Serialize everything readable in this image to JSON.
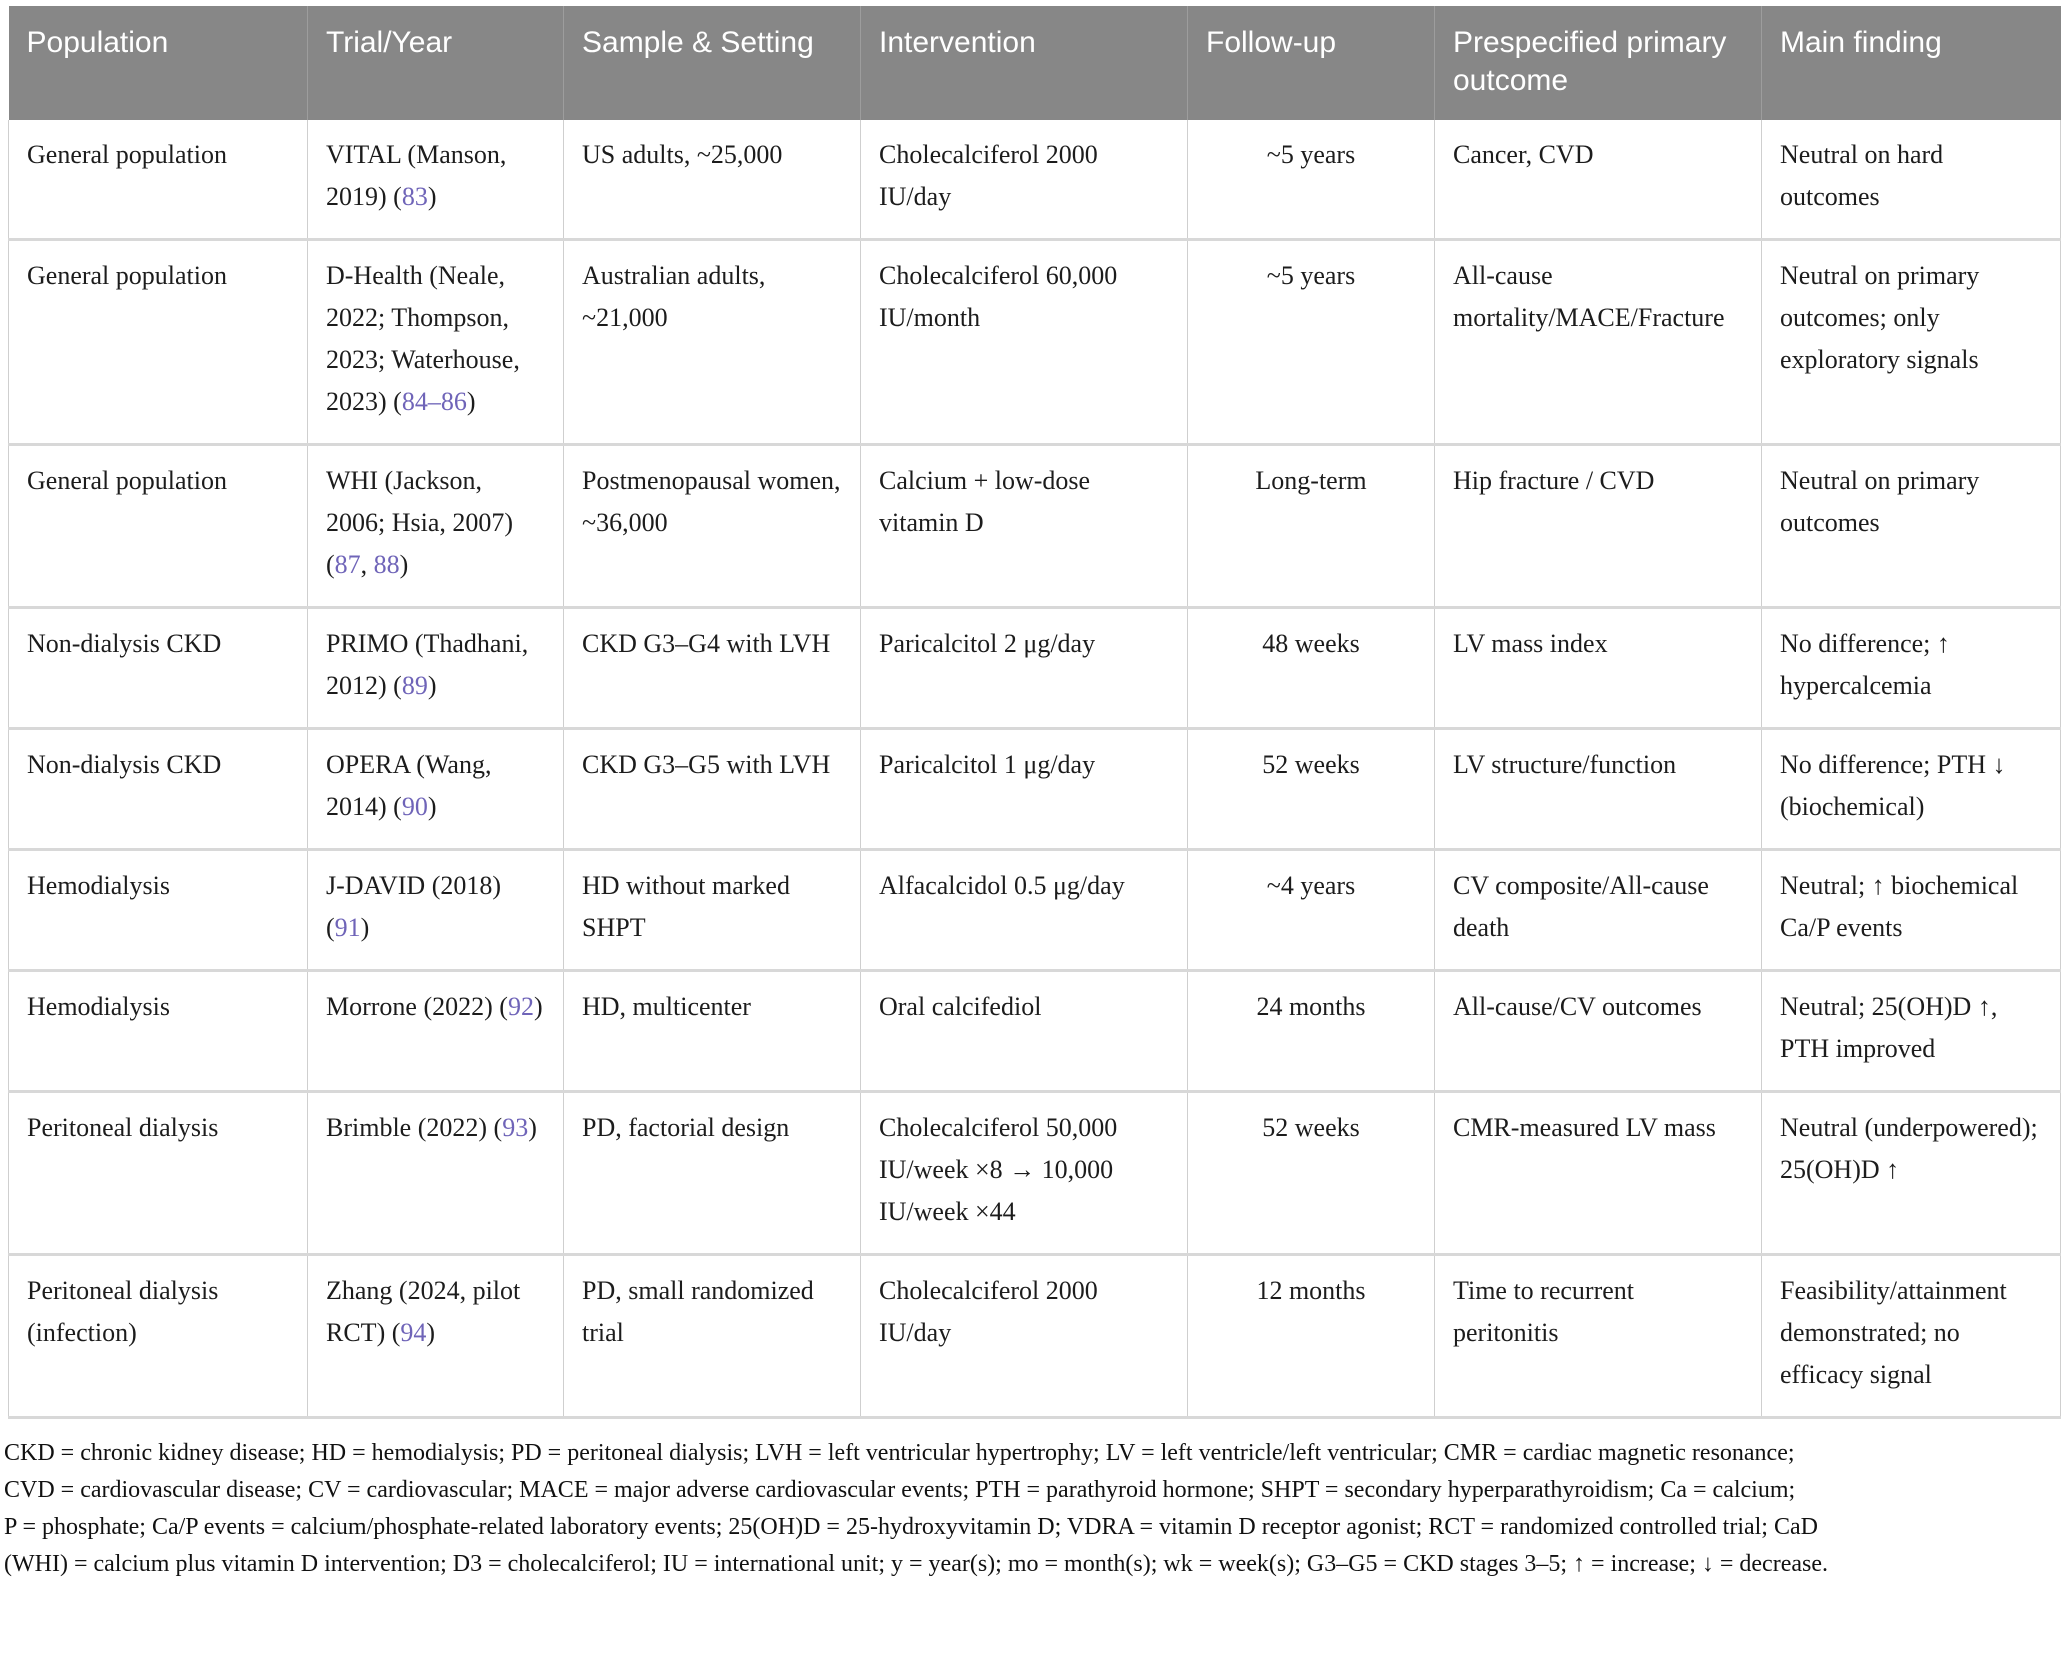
{
  "table": {
    "columns": [
      {
        "key": "population",
        "label": "Population"
      },
      {
        "key": "trial",
        "label": "Trial/Year"
      },
      {
        "key": "sample",
        "label": "Sample & Setting"
      },
      {
        "key": "intervention",
        "label": "Intervention"
      },
      {
        "key": "followup",
        "label": "Follow-up"
      },
      {
        "key": "outcome",
        "label": "Prespecified primary outcome"
      },
      {
        "key": "finding",
        "label": "Main finding"
      }
    ],
    "rows": [
      {
        "population": "General population",
        "trial_parts": [
          {
            "t": "VITAL (Manson, 2019) ("
          },
          {
            "t": "83",
            "link": true
          },
          {
            "t": ")"
          }
        ],
        "sample": "US adults, ~25,000",
        "intervention": "Cholecalciferol 2000 IU/day",
        "followup": "~5 years",
        "outcome": "Cancer, CVD",
        "finding": "Neutral on hard outcomes"
      },
      {
        "population": "General population",
        "trial_parts": [
          {
            "t": "D-Health (Neale, 2022; Thompson, 2023; Waterhouse, 2023) ("
          },
          {
            "t": "84–86",
            "link": true
          },
          {
            "t": ")"
          }
        ],
        "sample": "Australian adults, ~21,000",
        "intervention": "Cholecalciferol 60,000 IU/month",
        "followup": "~5 years",
        "outcome": "All-cause mortality/MACE/Fracture",
        "finding": "Neutral on primary outcomes; only exploratory signals"
      },
      {
        "population": "General population",
        "trial_parts": [
          {
            "t": "WHI (Jackson, 2006; Hsia, 2007) ("
          },
          {
            "t": "87",
            "link": true
          },
          {
            "t": ", "
          },
          {
            "t": "88",
            "link": true
          },
          {
            "t": ")"
          }
        ],
        "sample": "Postmenopausal women, ~36,000",
        "intervention": "Calcium + low-dose vitamin D",
        "followup": "Long-term",
        "outcome": "Hip fracture / CVD",
        "finding": "Neutral on primary outcomes"
      },
      {
        "population": "Non-dialysis CKD",
        "trial_parts": [
          {
            "t": "PRIMO (Thadhani, 2012) ("
          },
          {
            "t": "89",
            "link": true
          },
          {
            "t": ")"
          }
        ],
        "sample": "CKD G3–G4 with LVH",
        "intervention": "Paricalcitol 2 μg/day",
        "followup": "48 weeks",
        "outcome": "LV mass index",
        "finding": "No difference; ↑ hypercalcemia"
      },
      {
        "population": "Non-dialysis CKD",
        "trial_parts": [
          {
            "t": "OPERA (Wang, 2014) ("
          },
          {
            "t": "90",
            "link": true
          },
          {
            "t": ")"
          }
        ],
        "sample": "CKD G3–G5 with LVH",
        "intervention": "Paricalcitol 1 μg/day",
        "followup": "52 weeks",
        "outcome": "LV structure/function",
        "finding": "No difference; PTH ↓ (biochemical)"
      },
      {
        "population": "Hemodialysis",
        "trial_parts": [
          {
            "t": "J-DAVID (2018) ("
          },
          {
            "t": "91",
            "link": true
          },
          {
            "t": ")"
          }
        ],
        "sample": "HD without marked SHPT",
        "intervention": "Alfacalcidol 0.5 μg/day",
        "followup": "~4 years",
        "outcome": "CV composite/All-cause death",
        "finding": "Neutral; ↑ biochemical Ca/P events"
      },
      {
        "population": "Hemodialysis",
        "trial_parts": [
          {
            "t": "Morrone (2022) ("
          },
          {
            "t": "92",
            "link": true
          },
          {
            "t": ")"
          }
        ],
        "sample": "HD, multicenter",
        "intervention": "Oral calcifediol",
        "followup": "24 months",
        "outcome": "All-cause/CV outcomes",
        "finding": "Neutral; 25(OH)D ↑, PTH improved"
      },
      {
        "population": "Peritoneal dialysis",
        "trial_parts": [
          {
            "t": "Brimble (2022) ("
          },
          {
            "t": "93",
            "link": true
          },
          {
            "t": ")"
          }
        ],
        "sample": "PD, factorial design",
        "intervention": "Cholecalciferol 50,000 IU/week ×8 → 10,000 IU/week ×44",
        "followup": "52 weeks",
        "outcome": "CMR-measured LV mass",
        "finding": "Neutral (underpowered); 25(OH)D ↑"
      },
      {
        "population": "Peritoneal dialysis (infection)",
        "trial_parts": [
          {
            "t": "Zhang (2024, pilot RCT) ("
          },
          {
            "t": "94",
            "link": true
          },
          {
            "t": ")"
          }
        ],
        "sample": "PD, small randomized trial",
        "intervention": "Cholecalciferol 2000 IU/day",
        "followup": "12 months",
        "outcome": "Time to recurrent peritonitis",
        "finding": "Feasibility/attainment demonstrated; no efficacy signal"
      }
    ]
  },
  "footnote_lines": [
    "CKD = chronic kidney disease; HD = hemodialysis; PD = peritoneal dialysis; LVH = left ventricular hypertrophy; LV = left ventricle/left ventricular; CMR = cardiac magnetic resonance;",
    "CVD = cardiovascular disease; CV = cardiovascular; MACE = major adverse cardiovascular events; PTH = parathyroid hormone; SHPT = secondary hyperparathyroidism; Ca = calcium;",
    "P = phosphate; Ca/P events = calcium/phosphate-related laboratory events; 25(OH)D = 25-hydroxyvitamin D; VDRA = vitamin D receptor agonist; RCT = randomized controlled trial; CaD",
    "(WHI) = calcium plus vitamin D intervention; D3 = cholecalciferol; IU = international unit; y = year(s); mo = month(s); wk = week(s); G3–G5 = CKD stages 3–5; ↑ = increase; ↓ = decrease."
  ],
  "colors": {
    "header_bg": "#878787",
    "header_text": "#ffffff",
    "body_text": "#1c1c1c",
    "link": "#6f64b8",
    "border": "#cfcfcf",
    "row_separator": "#d8d8d8"
  }
}
